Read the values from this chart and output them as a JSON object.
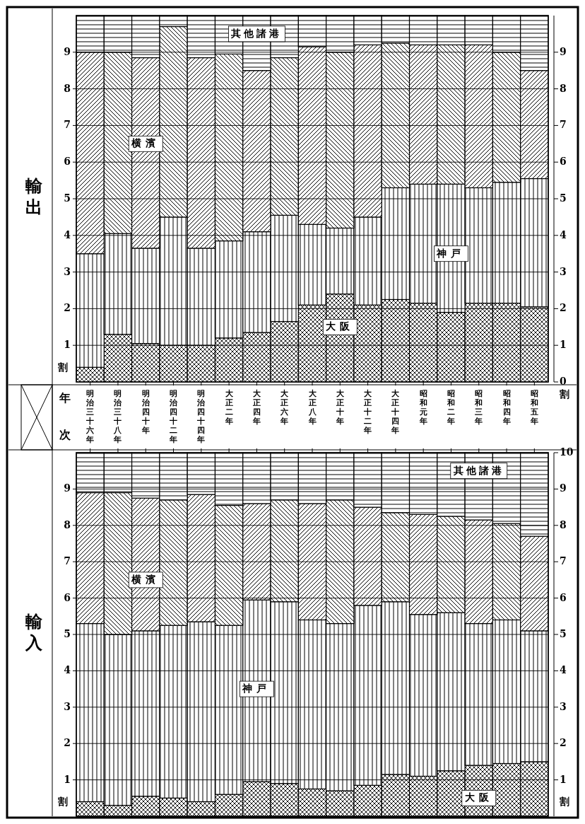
{
  "chart_data": [
    {
      "type": "bar",
      "stacked": true,
      "title": "輸出",
      "xlabel": "年次",
      "ylabel": "割",
      "y2label": "割",
      "categories": [
        "明治三十六年",
        "明治三十八年",
        "明治四十年",
        "明治四十二年",
        "明治四十四年",
        "大正二年",
        "大正四年",
        "大正六年",
        "大正八年",
        "大正十年",
        "大正十二年",
        "大正十四年",
        "昭和元年",
        "昭和二年",
        "昭和三年",
        "昭和四年",
        "昭和五年"
      ],
      "ylim": [
        0,
        10
      ],
      "yticks": [
        1,
        2,
        3,
        4,
        5,
        6,
        7,
        8,
        9
      ],
      "y2lim": [
        0,
        10
      ],
      "y2ticks": [
        0,
        1,
        2,
        3,
        4,
        5,
        6,
        7,
        8,
        9
      ],
      "grid": "y",
      "legend": false,
      "series": [
        {
          "name": "大阪",
          "color": "#000000",
          "values": [
            0.4,
            1.3,
            1.05,
            1.0,
            1.0,
            1.2,
            1.35,
            1.65,
            2.1,
            2.4,
            2.1,
            2.25,
            2.15,
            1.9,
            2.15,
            2.15,
            2.05
          ]
        },
        {
          "name": "神戸",
          "color": "#000000",
          "values": [
            3.1,
            2.75,
            2.6,
            3.5,
            2.65,
            2.65,
            2.75,
            2.9,
            2.2,
            1.8,
            2.4,
            3.05,
            3.25,
            3.5,
            3.15,
            3.3,
            3.5
          ]
        },
        {
          "name": "横濱",
          "color": "#000000",
          "values": [
            5.5,
            4.95,
            5.2,
            5.2,
            5.2,
            5.1,
            4.4,
            4.3,
            4.85,
            4.8,
            4.7,
            3.95,
            3.8,
            3.8,
            3.9,
            3.55,
            2.95
          ]
        },
        {
          "name": "其他諸港",
          "color": "#000000",
          "values": [
            1.0,
            1.0,
            1.15,
            0.3,
            1.15,
            1.05,
            1.5,
            1.15,
            0.85,
            1.0,
            0.8,
            0.75,
            0.8,
            0.8,
            0.8,
            1.0,
            1.5
          ]
        }
      ]
    },
    {
      "type": "bar",
      "stacked": true,
      "title": "輸入",
      "ylabel": "割",
      "y2label": "割",
      "tick_labels": "y",
      "categories": [
        "明治三十六年",
        "明治三十八年",
        "明治四十年",
        "明治四十二年",
        "明治四十四年",
        "大正二年",
        "大正四年",
        "大正六年",
        "大正八年",
        "大正十年",
        "大正十二年",
        "大正十四年",
        "昭和元年",
        "昭和二年",
        "昭和三年",
        "昭和四年",
        "昭和五年"
      ],
      "ylim": [
        0,
        10
      ],
      "yticks": [
        1,
        2,
        3,
        4,
        5,
        6,
        7,
        8,
        9
      ],
      "y2lim": [
        0,
        10
      ],
      "y2ticks": [
        1,
        2,
        3,
        4,
        5,
        6,
        7,
        8,
        9,
        10
      ],
      "grid": "y",
      "legend": false,
      "series": [
        {
          "name": "大阪",
          "color": "#000000",
          "values": [
            0.4,
            0.3,
            0.55,
            0.5,
            0.4,
            0.6,
            0.95,
            0.9,
            0.75,
            0.7,
            0.85,
            1.15,
            1.1,
            1.25,
            1.4,
            1.45,
            1.5
          ]
        },
        {
          "name": "神戸",
          "color": "#000000",
          "values": [
            4.9,
            4.7,
            4.55,
            4.75,
            4.95,
            4.65,
            5.0,
            5.0,
            4.65,
            4.6,
            4.95,
            4.75,
            4.45,
            4.35,
            3.9,
            3.95,
            3.6
          ]
        },
        {
          "name": "横濱",
          "color": "#000000",
          "values": [
            3.6,
            3.9,
            3.65,
            3.45,
            3.5,
            3.3,
            2.65,
            2.8,
            3.2,
            3.4,
            2.7,
            2.45,
            2.75,
            2.65,
            2.85,
            2.65,
            2.6
          ]
        },
        {
          "name": "其他諸港",
          "color": "#000000",
          "values": [
            1.1,
            1.1,
            1.25,
            1.3,
            1.15,
            1.45,
            1.4,
            1.3,
            1.4,
            1.3,
            1.5,
            1.65,
            1.7,
            1.75,
            1.85,
            1.95,
            2.3
          ]
        }
      ]
    }
  ]
}
